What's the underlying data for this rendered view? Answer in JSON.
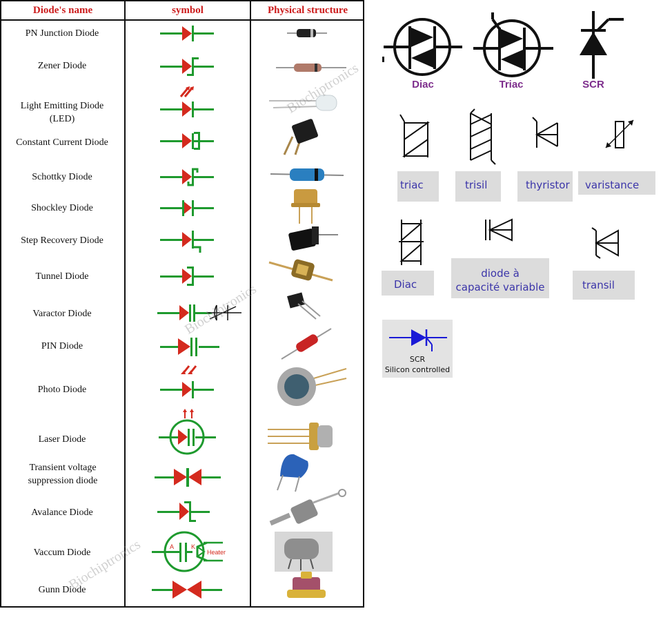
{
  "table": {
    "headers": [
      "Diode's name",
      "symbol",
      "Physical structure"
    ],
    "rows": [
      {
        "name": "PN Junction Diode"
      },
      {
        "name": "Zener Diode"
      },
      {
        "name": "Light Emitting Diode (LED)"
      },
      {
        "name": "Constant Current Diode"
      },
      {
        "name": "Schottky Diode"
      },
      {
        "name": "Shockley Diode"
      },
      {
        "name": "Step Recovery Diode"
      },
      {
        "name": "Tunnel Diode"
      },
      {
        "name": "Varactor Diode"
      },
      {
        "name": "PIN Diode"
      },
      {
        "name": "Photo Diode"
      },
      {
        "name": "Laser Diode"
      },
      {
        "name": "Transient voltage suppression diode"
      },
      {
        "name": "Avalance Diode"
      },
      {
        "name": "Vaccum Diode"
      },
      {
        "name": "Gunn Diode"
      }
    ],
    "vacuum_symbol_labels": {
      "anode": "A",
      "cathode": "K",
      "heater": "Heater"
    },
    "watermark": "Biochiptronics",
    "colors": {
      "header": "#cc1b1b",
      "lead": "#1e9a2e",
      "body": "#d42a1e"
    }
  },
  "right": {
    "big_symbols": [
      "Diac",
      "Triac",
      "SCR"
    ],
    "labels": {
      "triac": "triac",
      "trisil": "trisil",
      "thyristor": "thyristor",
      "varistance": "varistance",
      "diac": "Diac",
      "varicap_1": "diode à",
      "varicap_2": "capacité variable",
      "transil": "transil"
    },
    "scr_box": {
      "line1": "SCR",
      "line2": "Silicon controlled"
    },
    "colors": {
      "big_label": "#7d2d8c",
      "label_text": "#3b35a9",
      "scr_symbol": "#1a1ad6"
    }
  }
}
